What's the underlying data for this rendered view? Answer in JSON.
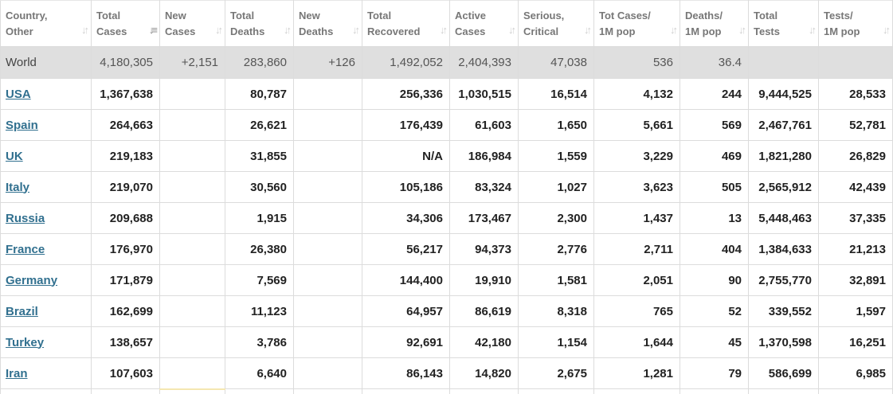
{
  "columns": [
    {
      "line1": "Country,",
      "line2": "Other"
    },
    {
      "line1": "Total",
      "line2": "Cases"
    },
    {
      "line1": "New",
      "line2": "Cases"
    },
    {
      "line1": "Total",
      "line2": "Deaths"
    },
    {
      "line1": "New",
      "line2": "Deaths"
    },
    {
      "line1": "Total",
      "line2": "Recovered"
    },
    {
      "line1": "Active",
      "line2": "Cases"
    },
    {
      "line1": "Serious,",
      "line2": "Critical"
    },
    {
      "line1": "Tot Cases/",
      "line2": "1M pop"
    },
    {
      "line1": "Deaths/",
      "line2": "1M pop"
    },
    {
      "line1": "Total",
      "line2": "Tests"
    },
    {
      "line1": "Tests/",
      "line2": "1M pop"
    }
  ],
  "sort_icon": "↓↑",
  "active_sort_icon": "↓≡",
  "world": [
    "World",
    "4,180,305",
    "+2,151",
    "283,860",
    "+126",
    "1,492,052",
    "2,404,393",
    "47,038",
    "536",
    "36.4",
    "",
    ""
  ],
  "rows": [
    [
      "USA",
      "1,367,638",
      "",
      "80,787",
      "",
      "256,336",
      "1,030,515",
      "16,514",
      "4,132",
      "244",
      "9,444,525",
      "28,533"
    ],
    [
      "Spain",
      "264,663",
      "",
      "26,621",
      "",
      "176,439",
      "61,603",
      "1,650",
      "5,661",
      "569",
      "2,467,761",
      "52,781"
    ],
    [
      "UK",
      "219,183",
      "",
      "31,855",
      "",
      "N/A",
      "186,984",
      "1,559",
      "3,229",
      "469",
      "1,821,280",
      "26,829"
    ],
    [
      "Italy",
      "219,070",
      "",
      "30,560",
      "",
      "105,186",
      "83,324",
      "1,027",
      "3,623",
      "505",
      "2,565,912",
      "42,439"
    ],
    [
      "Russia",
      "209,688",
      "",
      "1,915",
      "",
      "34,306",
      "173,467",
      "2,300",
      "1,437",
      "13",
      "5,448,463",
      "37,335"
    ],
    [
      "France",
      "176,970",
      "",
      "26,380",
      "",
      "56,217",
      "94,373",
      "2,776",
      "2,711",
      "404",
      "1,384,633",
      "21,213"
    ],
    [
      "Germany",
      "171,879",
      "",
      "7,569",
      "",
      "144,400",
      "19,910",
      "1,581",
      "2,051",
      "90",
      "2,755,770",
      "32,891"
    ],
    [
      "Brazil",
      "162,699",
      "",
      "11,123",
      "",
      "64,957",
      "86,619",
      "8,318",
      "765",
      "52",
      "339,552",
      "1,597"
    ],
    [
      "Turkey",
      "138,657",
      "",
      "3,786",
      "",
      "92,691",
      "42,180",
      "1,154",
      "1,644",
      "45",
      "1,370,598",
      "16,251"
    ],
    [
      "Iran",
      "107,603",
      "",
      "6,640",
      "",
      "86,143",
      "14,820",
      "2,675",
      "1,281",
      "79",
      "586,699",
      "6,985"
    ]
  ]
}
